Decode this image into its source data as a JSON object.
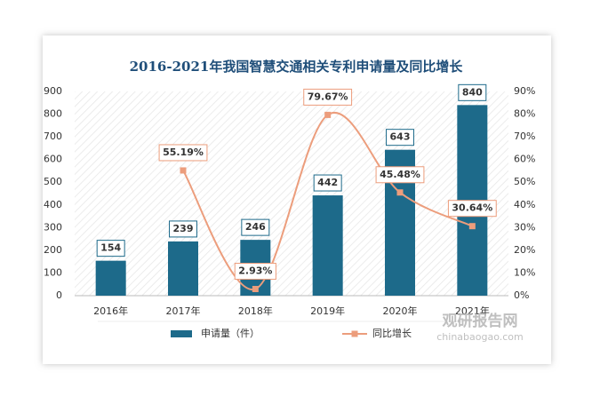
{
  "chart_data": {
    "type": "bar_line",
    "title": "2016-2021年我国智慧交通相关专利申请量及同比增长",
    "categories": [
      "2016年",
      "2017年",
      "2018年",
      "2019年",
      "2020年",
      "2021年"
    ],
    "series": [
      {
        "name": "申请量（件）",
        "type": "bar",
        "color": "#1d6a8a",
        "values": [
          154,
          239,
          246,
          442,
          643,
          840
        ]
      },
      {
        "name": "同比增长",
        "type": "line",
        "axis": "y2",
        "color": "#ec9d7c",
        "values": [
          null,
          55.19,
          2.93,
          79.67,
          45.48,
          30.64
        ],
        "value_labels": [
          null,
          "55.19%",
          "2.93%",
          "79.67%",
          "45.48%",
          "30.64%"
        ]
      }
    ],
    "ylim": [
      0,
      900
    ],
    "yticks": [
      0,
      100,
      200,
      300,
      400,
      500,
      600,
      700,
      800,
      900
    ],
    "y2lim": [
      0,
      90
    ],
    "y2ticks": [
      {
        "value": 0,
        "label": "0%"
      },
      {
        "value": 10,
        "label": "10%"
      },
      {
        "value": 20,
        "label": "20%"
      },
      {
        "value": 30,
        "label": "30%"
      },
      {
        "value": 40,
        "label": "40%"
      },
      {
        "value": 50,
        "label": "50%"
      },
      {
        "value": 60,
        "label": "60%"
      },
      {
        "value": 70,
        "label": "70%"
      },
      {
        "value": 80,
        "label": "80%"
      },
      {
        "value": 90,
        "label": "90%"
      }
    ],
    "watermark": [
      "观研报告网",
      "chinabaogao.com"
    ]
  }
}
